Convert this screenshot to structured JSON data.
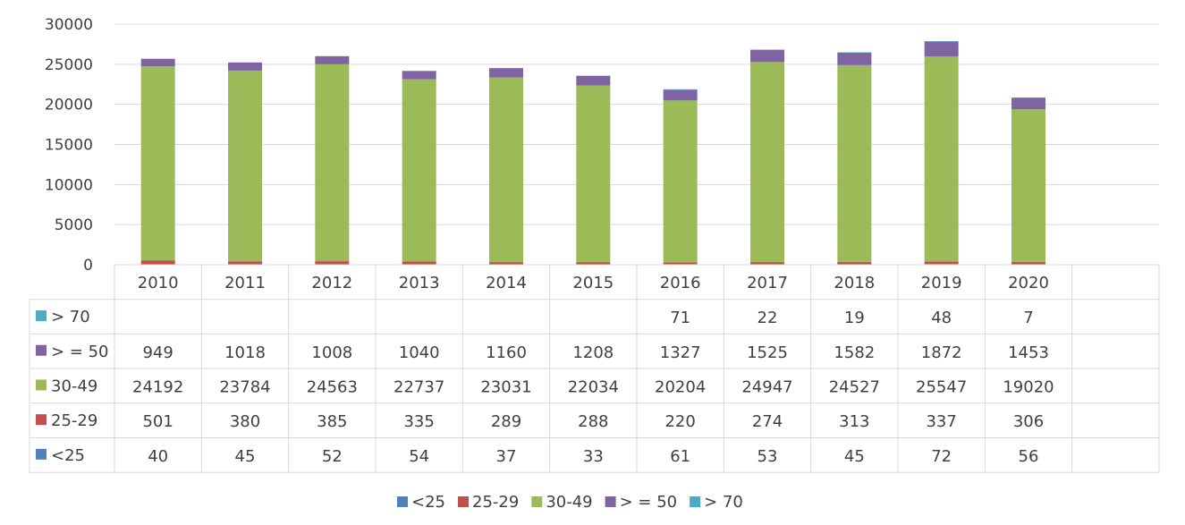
{
  "chart_data": {
    "type": "bar",
    "stacked": true,
    "categories": [
      "2010",
      "2011",
      "2012",
      "2013",
      "2014",
      "2015",
      "2016",
      "2017",
      "2018",
      "2019",
      "2020"
    ],
    "series": [
      {
        "name": "<25",
        "color": "#4F81BD",
        "values": [
          40,
          45,
          52,
          54,
          37,
          33,
          61,
          53,
          45,
          72,
          56
        ]
      },
      {
        "name": "25-29",
        "color": "#C0504D",
        "values": [
          501,
          380,
          385,
          335,
          289,
          288,
          220,
          274,
          313,
          337,
          306
        ]
      },
      {
        "name": "30-49",
        "color": "#9BBB59",
        "values": [
          24192,
          23784,
          24563,
          22737,
          23031,
          22034,
          20204,
          24947,
          24527,
          25547,
          19020
        ]
      },
      {
        "name": "> = 50",
        "color": "#8064A2",
        "values": [
          949,
          1018,
          1008,
          1040,
          1160,
          1208,
          1327,
          1525,
          1582,
          1872,
          1453
        ]
      },
      {
        "name": "> 70",
        "color": "#4BACC6",
        "values": [
          null,
          null,
          null,
          null,
          null,
          null,
          71,
          22,
          19,
          48,
          7
        ]
      }
    ],
    "y_ticks": [
      "0",
      "5000",
      "10000",
      "15000",
      "20000",
      "25000",
      "30000"
    ],
    "ylim": [
      0,
      30000
    ],
    "grid": true,
    "data_table": true,
    "legend": "bottom"
  }
}
